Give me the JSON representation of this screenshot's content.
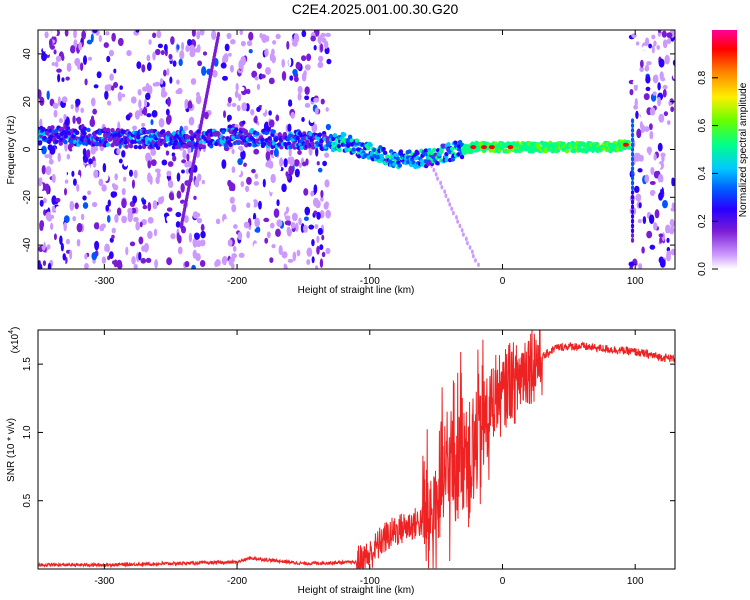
{
  "figure": {
    "title": "C2E4.2025.001.00.30.G20"
  },
  "chart_data": [
    {
      "type": "heatmap",
      "xlabel": "Height of straight line (km)",
      "ylabel": "Frequency (Hz)",
      "xlim": [
        -350,
        130
      ],
      "ylim": [
        -50,
        50
      ],
      "xticks": [
        -300,
        -200,
        -100,
        0,
        100
      ],
      "yticks": [
        -40,
        -20,
        0,
        20,
        40
      ],
      "colorbar": {
        "label": "Normalized spectral amplitude",
        "range": [
          0.0,
          1.0
        ],
        "ticks": [
          "0.0",
          "0.2",
          "0.4",
          "0.6",
          "0.8"
        ],
        "colormap": [
          "#ffffff",
          "#cc99ff",
          "#7a1bd6",
          "#2a00ff",
          "#0057ff",
          "#00c8ff",
          "#00ff8a",
          "#66ff00",
          "#ffee00",
          "#ff8800",
          "#ff0000",
          "#ff0099"
        ]
      },
      "ridge": {
        "x": [
          -350,
          -300,
          -250,
          -200,
          -150,
          -120,
          -100,
          -80,
          -60,
          -40,
          -20,
          0,
          20,
          50,
          80,
          95
        ],
        "y": [
          6,
          5,
          4,
          5,
          4,
          3,
          -1,
          -4,
          -4,
          -1,
          1,
          1,
          1,
          1,
          1,
          2
        ]
      },
      "grid": false
    },
    {
      "type": "line",
      "xlabel": "Height of straight line (km)",
      "ylabel": "SNR (10 * v/v)",
      "yscale_label": "(x10",
      "yscale_exp": "4",
      "xlim": [
        -350,
        130
      ],
      "ylim": [
        0,
        1.75
      ],
      "xticks": [
        -300,
        -200,
        -100,
        0,
        100
      ],
      "yticks": [
        "0.5",
        "1.0",
        "1.5"
      ],
      "series": [
        {
          "color": "#ee2222",
          "x": [
            -350,
            -300,
            -250,
            -200,
            -190,
            -150,
            -110,
            -100,
            -90,
            -80,
            -70,
            -60,
            -50,
            -45,
            -40,
            -35,
            -30,
            -25,
            -20,
            -15,
            -10,
            -5,
            0,
            5,
            10,
            15,
            20,
            30,
            40,
            50,
            60,
            70,
            80,
            90,
            100,
            110,
            120,
            130
          ],
          "values": [
            0.03,
            0.03,
            0.04,
            0.05,
            0.08,
            0.04,
            0.05,
            0.1,
            0.22,
            0.28,
            0.32,
            0.35,
            0.45,
            0.62,
            0.72,
            0.8,
            1.0,
            0.85,
            0.9,
            1.05,
            1.15,
            1.3,
            1.25,
            1.4,
            1.35,
            1.45,
            1.5,
            1.55,
            1.62,
            1.63,
            1.63,
            1.62,
            1.61,
            1.6,
            1.59,
            1.57,
            1.55,
            1.54
          ]
        }
      ],
      "grid": false
    }
  ]
}
